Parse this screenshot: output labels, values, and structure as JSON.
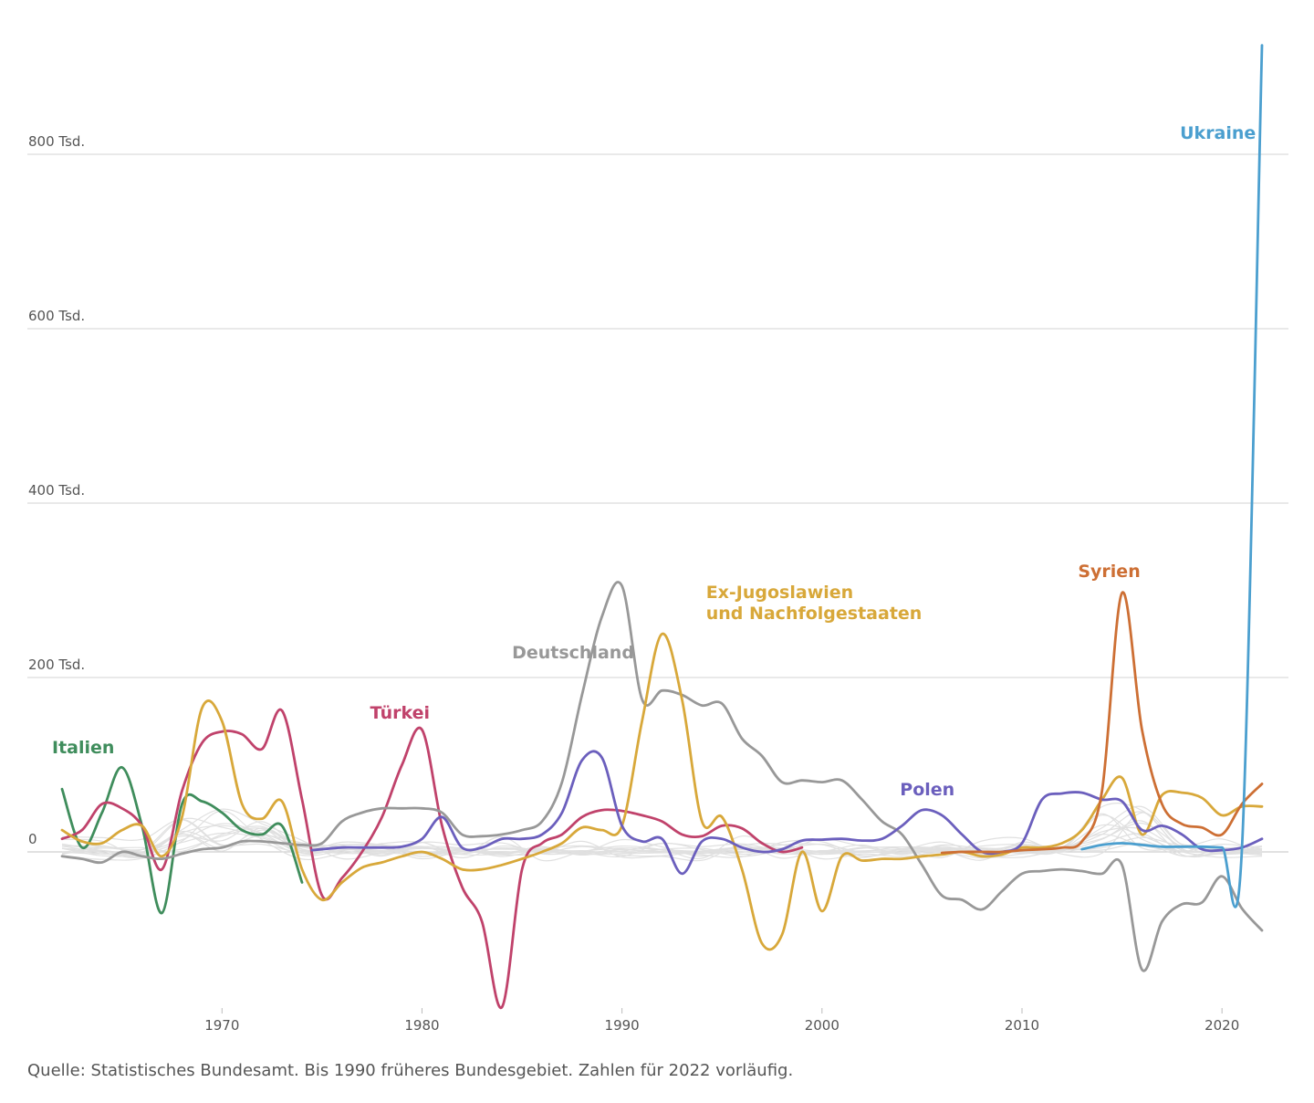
{
  "chart_data": {
    "type": "line",
    "x_ticks": [
      1970,
      1980,
      1990,
      2000,
      2010,
      2020
    ],
    "y_ticks": [
      {
        "value": 0,
        "label": "0"
      },
      {
        "value": 200000,
        "label": "200 Tsd."
      },
      {
        "value": 400000,
        "label": "400 Tsd."
      },
      {
        "value": 600000,
        "label": "600 Tsd."
      },
      {
        "value": 800000,
        "label": "800 Tsd."
      }
    ],
    "xlim": [
      1961.5,
      2023.3
    ],
    "ylim": [
      -180000,
      920000
    ],
    "grid": true,
    "series": [
      {
        "name": "Italien",
        "color": "#3f8d5c",
        "label_pos": {
          "x": 1961.5,
          "y": 113000
        },
        "points": [
          [
            1962,
            72000
          ],
          [
            1963,
            5000
          ],
          [
            1964,
            45000
          ],
          [
            1965,
            97000
          ],
          [
            1966,
            30000
          ],
          [
            1967,
            -70000
          ],
          [
            1968,
            55000
          ],
          [
            1969,
            58000
          ],
          [
            1970,
            45000
          ],
          [
            1971,
            25000
          ],
          [
            1972,
            20000
          ],
          [
            1973,
            30000
          ],
          [
            1974,
            -35000
          ]
        ]
      },
      {
        "name": "Türkei",
        "color": "#c0426b",
        "label_pos": {
          "x": 1977.4,
          "y": 153000
        },
        "points": [
          [
            1962,
            15000
          ],
          [
            1963,
            25000
          ],
          [
            1964,
            55000
          ],
          [
            1965,
            50000
          ],
          [
            1966,
            30000
          ],
          [
            1967,
            -20000
          ],
          [
            1968,
            70000
          ],
          [
            1969,
            125000
          ],
          [
            1970,
            138000
          ],
          [
            1971,
            135000
          ],
          [
            1972,
            118000
          ],
          [
            1973,
            162000
          ],
          [
            1974,
            60000
          ],
          [
            1975,
            -50000
          ],
          [
            1976,
            -30000
          ],
          [
            1977,
            0
          ],
          [
            1978,
            40000
          ],
          [
            1979,
            100000
          ],
          [
            1980,
            140000
          ],
          [
            1981,
            30000
          ],
          [
            1982,
            -40000
          ],
          [
            1983,
            -80000
          ],
          [
            1984,
            -178000
          ],
          [
            1985,
            -20000
          ],
          [
            1986,
            10000
          ],
          [
            1987,
            20000
          ],
          [
            1988,
            40000
          ],
          [
            1989,
            48000
          ],
          [
            1990,
            47000
          ],
          [
            1991,
            42000
          ],
          [
            1992,
            35000
          ],
          [
            1993,
            20000
          ],
          [
            1994,
            18000
          ],
          [
            1995,
            30000
          ],
          [
            1996,
            27000
          ],
          [
            1997,
            10000
          ],
          [
            1998,
            0
          ],
          [
            1999,
            5000
          ]
        ]
      },
      {
        "name": "Deutschland",
        "color": "#989898",
        "label_pos": {
          "x": 1984.5,
          "y": 222000
        },
        "points": [
          [
            1962,
            -5000
          ],
          [
            1963,
            -8000
          ],
          [
            1964,
            -12000
          ],
          [
            1965,
            0
          ],
          [
            1966,
            -5000
          ],
          [
            1967,
            -8000
          ],
          [
            1968,
            -2000
          ],
          [
            1969,
            3000
          ],
          [
            1970,
            5000
          ],
          [
            1971,
            12000
          ],
          [
            1972,
            12000
          ],
          [
            1973,
            10000
          ],
          [
            1974,
            8000
          ],
          [
            1975,
            10000
          ],
          [
            1976,
            35000
          ],
          [
            1977,
            45000
          ],
          [
            1978,
            50000
          ],
          [
            1979,
            50000
          ],
          [
            1980,
            50000
          ],
          [
            1981,
            45000
          ],
          [
            1982,
            20000
          ],
          [
            1983,
            18000
          ],
          [
            1984,
            20000
          ],
          [
            1985,
            25000
          ],
          [
            1986,
            35000
          ],
          [
            1987,
            80000
          ],
          [
            1988,
            180000
          ],
          [
            1989,
            270000
          ],
          [
            1990,
            305000
          ],
          [
            1991,
            175000
          ],
          [
            1992,
            185000
          ],
          [
            1993,
            180000
          ],
          [
            1994,
            168000
          ],
          [
            1995,
            170000
          ],
          [
            1996,
            130000
          ],
          [
            1997,
            110000
          ],
          [
            1998,
            80000
          ],
          [
            1999,
            82000
          ],
          [
            2000,
            80000
          ],
          [
            2001,
            82000
          ],
          [
            2002,
            60000
          ],
          [
            2003,
            35000
          ],
          [
            2004,
            20000
          ],
          [
            2005,
            -15000
          ],
          [
            2006,
            -50000
          ],
          [
            2007,
            -55000
          ],
          [
            2008,
            -66000
          ],
          [
            2009,
            -45000
          ],
          [
            2010,
            -25000
          ],
          [
            2011,
            -22000
          ],
          [
            2012,
            -20000
          ],
          [
            2013,
            -22000
          ],
          [
            2014,
            -25000
          ],
          [
            2015,
            -15000
          ],
          [
            2016,
            -135000
          ],
          [
            2017,
            -80000
          ],
          [
            2018,
            -60000
          ],
          [
            2019,
            -58000
          ],
          [
            2020,
            -28000
          ],
          [
            2021,
            -65000
          ],
          [
            2022,
            -90000
          ]
        ]
      },
      {
        "name": "Ex-Jugoslawien",
        "name_line2": "und Nachfolgestaaten",
        "color": "#d8a83a",
        "label_pos": {
          "x": 1994.2,
          "y": 291000
        },
        "points": [
          [
            1962,
            25000
          ],
          [
            1963,
            12000
          ],
          [
            1964,
            10000
          ],
          [
            1965,
            25000
          ],
          [
            1966,
            30000
          ],
          [
            1967,
            -5000
          ],
          [
            1968,
            40000
          ],
          [
            1969,
            165000
          ],
          [
            1970,
            150000
          ],
          [
            1971,
            55000
          ],
          [
            1972,
            38000
          ],
          [
            1973,
            58000
          ],
          [
            1974,
            -20000
          ],
          [
            1975,
            -55000
          ],
          [
            1976,
            -35000
          ],
          [
            1977,
            -18000
          ],
          [
            1978,
            -12000
          ],
          [
            1979,
            -5000
          ],
          [
            1980,
            0
          ],
          [
            1981,
            -8000
          ],
          [
            1982,
            -20000
          ],
          [
            1983,
            -20000
          ],
          [
            1984,
            -15000
          ],
          [
            1985,
            -8000
          ],
          [
            1986,
            0
          ],
          [
            1987,
            10000
          ],
          [
            1988,
            28000
          ],
          [
            1989,
            25000
          ],
          [
            1990,
            30000
          ],
          [
            1991,
            150000
          ],
          [
            1992,
            250000
          ],
          [
            1993,
            175000
          ],
          [
            1994,
            35000
          ],
          [
            1995,
            40000
          ],
          [
            1996,
            -20000
          ],
          [
            1997,
            -105000
          ],
          [
            1998,
            -95000
          ],
          [
            1999,
            0
          ],
          [
            2000,
            -68000
          ],
          [
            2001,
            -5000
          ],
          [
            2002,
            -10000
          ],
          [
            2003,
            -8000
          ],
          [
            2004,
            -8000
          ],
          [
            2005,
            -5000
          ],
          [
            2006,
            -3000
          ],
          [
            2007,
            0
          ],
          [
            2008,
            -5000
          ],
          [
            2009,
            -3000
          ],
          [
            2010,
            5000
          ],
          [
            2011,
            5000
          ],
          [
            2012,
            10000
          ],
          [
            2013,
            25000
          ],
          [
            2014,
            60000
          ],
          [
            2015,
            85000
          ],
          [
            2016,
            20000
          ],
          [
            2017,
            65000
          ],
          [
            2018,
            68000
          ],
          [
            2019,
            62000
          ],
          [
            2020,
            42000
          ],
          [
            2021,
            52000
          ],
          [
            2022,
            52000
          ]
        ]
      },
      {
        "name": "Polen",
        "color": "#6b5fbd",
        "label_pos": {
          "x": 2003.9,
          "y": 65000
        },
        "points": [
          [
            1974.5,
            2000
          ],
          [
            1976,
            5000
          ],
          [
            1977,
            5000
          ],
          [
            1978,
            5000
          ],
          [
            1979,
            6000
          ],
          [
            1980,
            15000
          ],
          [
            1981,
            40000
          ],
          [
            1982,
            5000
          ],
          [
            1983,
            5000
          ],
          [
            1984,
            15000
          ],
          [
            1985,
            15000
          ],
          [
            1986,
            20000
          ],
          [
            1987,
            45000
          ],
          [
            1988,
            105000
          ],
          [
            1989,
            108000
          ],
          [
            1990,
            30000
          ],
          [
            1991,
            12000
          ],
          [
            1992,
            15000
          ],
          [
            1993,
            -25000
          ],
          [
            1994,
            12000
          ],
          [
            1995,
            15000
          ],
          [
            1996,
            5000
          ],
          [
            1997,
            0
          ],
          [
            1998,
            3000
          ],
          [
            1999,
            13000
          ],
          [
            2000,
            14000
          ],
          [
            2001,
            15000
          ],
          [
            2002,
            13000
          ],
          [
            2003,
            15000
          ],
          [
            2004,
            30000
          ],
          [
            2005,
            48000
          ],
          [
            2006,
            42000
          ],
          [
            2007,
            20000
          ],
          [
            2008,
            0
          ],
          [
            2009,
            0
          ],
          [
            2010,
            10000
          ],
          [
            2011,
            60000
          ],
          [
            2012,
            67000
          ],
          [
            2013,
            68000
          ],
          [
            2014,
            60000
          ],
          [
            2015,
            58000
          ],
          [
            2016,
            25000
          ],
          [
            2017,
            30000
          ],
          [
            2018,
            20000
          ],
          [
            2019,
            3000
          ],
          [
            2020,
            2000
          ],
          [
            2021,
            5000
          ],
          [
            2022,
            15000
          ]
        ]
      },
      {
        "name": "Syrien",
        "color": "#cd6f34",
        "label_pos": {
          "x": 2012.8,
          "y": 315000
        },
        "points": [
          [
            2006,
            -1000
          ],
          [
            2007,
            0
          ],
          [
            2008,
            0
          ],
          [
            2009,
            0
          ],
          [
            2010,
            2000
          ],
          [
            2011,
            3000
          ],
          [
            2012,
            5000
          ],
          [
            2013,
            12000
          ],
          [
            2014,
            70000
          ],
          [
            2015,
            297000
          ],
          [
            2016,
            140000
          ],
          [
            2017,
            55000
          ],
          [
            2018,
            32000
          ],
          [
            2019,
            28000
          ],
          [
            2020,
            20000
          ],
          [
            2021,
            55000
          ],
          [
            2022,
            78000
          ]
        ]
      },
      {
        "name": "Ukraine",
        "color": "#4b9fcf",
        "label_pos": {
          "x": 2017.9,
          "y": 818000
        },
        "points": [
          [
            2013,
            3000
          ],
          [
            2014,
            8000
          ],
          [
            2015,
            10000
          ],
          [
            2016,
            8000
          ],
          [
            2017,
            6000
          ],
          [
            2018,
            6000
          ],
          [
            2019,
            6000
          ],
          [
            2020,
            5000
          ],
          [
            2021,
            5000
          ],
          [
            2022,
            925000
          ]
        ]
      }
    ]
  },
  "footer": {
    "source_note": "Quelle: Statistisches Bundesamt. Bis 1990 früheres Bundesgebiet. Zahlen für 2022 vorläufig."
  }
}
